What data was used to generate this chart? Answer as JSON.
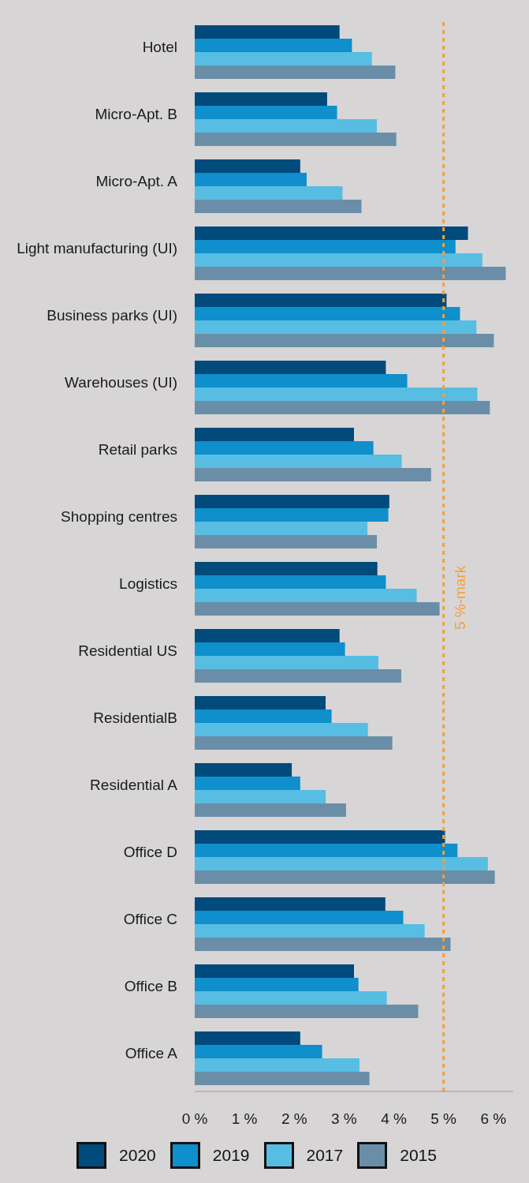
{
  "chart_data": {
    "type": "bar",
    "orientation": "horizontal",
    "categories": [
      "Hotel",
      "Micro-Apt. B",
      "Micro-Apt. A",
      "Light manufacturing (UI)",
      "Business parks (UI)",
      "Warehouses (UI)",
      "Retail parks",
      "Shopping centres",
      "Logistics",
      "Residential US",
      "ResidentialB",
      "Residential A",
      "Office D",
      "Office C",
      "Office B",
      "Office A"
    ],
    "series": [
      {
        "name": "2020",
        "color": "#004a7c",
        "values": [
          2.91,
          2.66,
          2.12,
          5.49,
          5.06,
          3.84,
          3.2,
          3.91,
          3.67,
          2.91,
          2.63,
          1.95,
          5.03,
          3.83,
          3.2,
          2.12
        ]
      },
      {
        "name": "2019",
        "color": "#0f8fcb",
        "values": [
          3.16,
          2.86,
          2.25,
          5.24,
          5.33,
          4.27,
          3.59,
          3.89,
          3.84,
          3.02,
          2.75,
          2.12,
          5.28,
          4.19,
          3.29,
          2.56
        ]
      },
      {
        "name": "2017",
        "color": "#57bde3",
        "values": [
          3.56,
          3.66,
          2.97,
          5.78,
          5.66,
          5.68,
          4.16,
          3.47,
          4.46,
          3.69,
          3.48,
          2.63,
          5.89,
          4.62,
          3.86,
          3.31
        ]
      },
      {
        "name": "2015",
        "color": "#6a8ea8",
        "values": [
          4.03,
          4.05,
          3.35,
          6.25,
          6.01,
          5.93,
          4.75,
          3.66,
          4.92,
          4.15,
          3.97,
          3.04,
          6.03,
          5.14,
          4.49,
          3.51
        ]
      }
    ],
    "xlim": [
      0,
      6.4
    ],
    "xticks": [
      {
        "value": 0,
        "label": "0 %"
      },
      {
        "value": 1,
        "label": "1 %"
      },
      {
        "value": 2,
        "label": "2 %"
      },
      {
        "value": 3,
        "label": "3 %"
      },
      {
        "value": 4,
        "label": "4 %"
      },
      {
        "value": 5,
        "label": "5 %"
      },
      {
        "value": 6,
        "label": "6 %"
      }
    ],
    "ref_lines": [
      {
        "axis": "x",
        "value": 5,
        "label": "5 %-mark",
        "color": "#f5a03a",
        "line_style": "dotted"
      }
    ],
    "grid": false,
    "legend": "bottom"
  }
}
